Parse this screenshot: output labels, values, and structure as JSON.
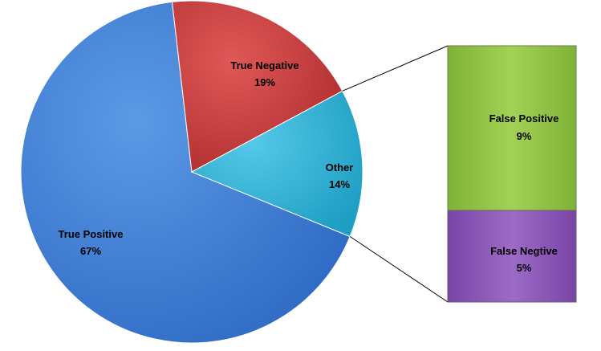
{
  "chart_data": {
    "type": "pie",
    "subtype": "bar-of-pie",
    "slices": [
      {
        "label": "True Positive",
        "value": 67,
        "value_label": "67%",
        "color": "#3f7fd6"
      },
      {
        "label": "True Negative",
        "value": 19,
        "value_label": "19%",
        "color": "#c63b3b"
      },
      {
        "label": "Other",
        "value": 14,
        "value_label": "14%",
        "color": "#2fb3d6"
      }
    ],
    "secondary": {
      "source_slice": "Other",
      "segments": [
        {
          "label": "False Positive",
          "value": 9,
          "value_label": "9%",
          "color": "#8fc043"
        },
        {
          "label": "False Negtive",
          "value": 5,
          "value_label": "5%",
          "color": "#8a55b5"
        }
      ]
    }
  }
}
